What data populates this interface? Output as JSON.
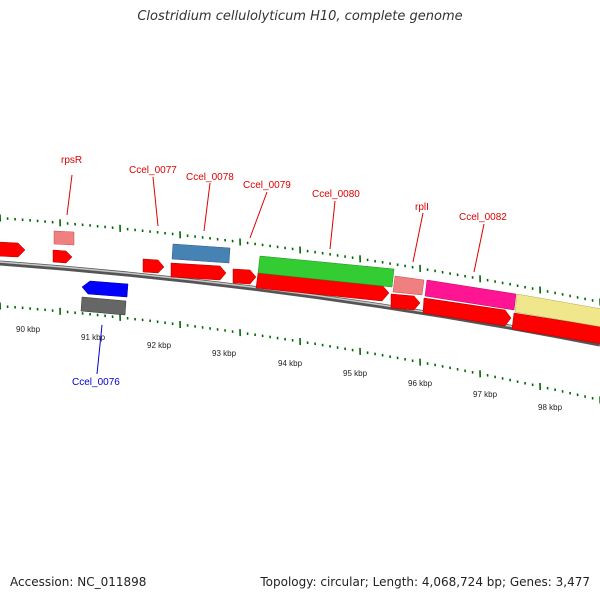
{
  "title": "Clostridium cellulolyticum H10, complete genome",
  "footer": {
    "accession": "Accession: NC_011898",
    "summary": "Topology: circular; Length: 4,068,724 bp; Genes: 3,477"
  },
  "colors": {
    "gene_red": "#ff0000",
    "blue_gene": "#0000ff",
    "gray_gene": "#666666",
    "steelblue_gene": "#4682b4",
    "green_gene": "#33cc33",
    "salmon_gene": "#f08080",
    "pink_gene": "#ff1493",
    "khaki_gene": "#f0e68c",
    "tick_green": "#006600",
    "label_red": "#dd0000",
    "label_blue": "#0000cc"
  },
  "scale_labels": [
    "90 kbp",
    "91 kbp",
    "92 kbp",
    "93 kbp",
    "94 kbp",
    "95 kbp",
    "96 kbp",
    "97 kbp",
    "98 kbp"
  ],
  "gene_labels": {
    "rpsR": "rpsR",
    "ccel_0077": "Ccel_0077",
    "ccel_0078": "Ccel_0078",
    "ccel_0079": "Ccel_0079",
    "ccel_0080": "Ccel_0080",
    "rplI": "rplI",
    "ccel_0082": "Ccel_0082",
    "ccel_0076": "Ccel_0076"
  }
}
